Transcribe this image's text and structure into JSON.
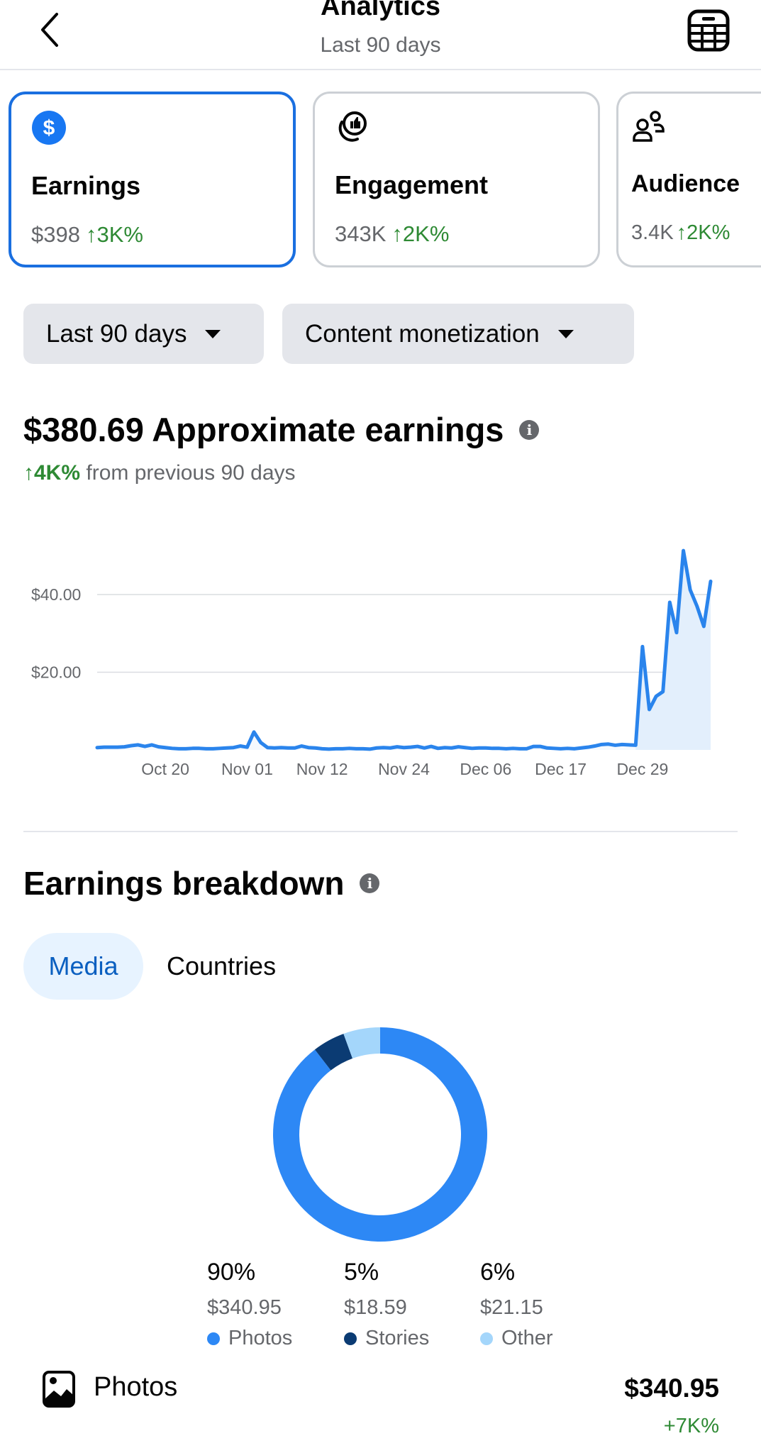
{
  "header": {
    "title": "Analytics",
    "subtitle": "Last 90 days",
    "back_icon": "chevron-left-icon",
    "right_icon": "calculator-icon"
  },
  "cards": [
    {
      "label": "Earnings",
      "value": "$398",
      "change": "↑3K%",
      "icon": "dollar-circle-icon",
      "selected": true
    },
    {
      "label": "Engagement",
      "value": "343K",
      "change": "↑2K%",
      "icon": "thumbs-up-engagement-icon",
      "selected": false
    },
    {
      "label": "Audience",
      "value": "3.4K",
      "change": "↑2K%",
      "icon": "people-icon",
      "selected": false
    }
  ],
  "filters": {
    "period": "Last 90 days",
    "type": "Content monetization"
  },
  "summary": {
    "amount_label": "$380.69 Approximate earnings",
    "change": "↑4K%",
    "change_text": "from previous 90 days"
  },
  "colors": {
    "accent": "#1877F2",
    "line": "#2a84ec",
    "fill": "#e3effc",
    "positive": "#2e8a34",
    "photos": "#2d88f5",
    "stories": "#0b3b73",
    "other": "#a4d6fb"
  },
  "chart_data": [
    {
      "type": "area",
      "ylim": [
        0,
        52
      ],
      "yticks": [
        {
          "value": 20,
          "label": "$20.00"
        },
        {
          "value": 40,
          "label": "$40.00"
        }
      ],
      "xticks": [
        "Oct 20",
        "Nov 01",
        "Nov 12",
        "Nov 24",
        "Dec 06",
        "Dec 17",
        "Dec 29"
      ],
      "grid": true,
      "x": [
        "Oct 10",
        "Oct 11",
        "Oct 12",
        "Oct 13",
        "Oct 14",
        "Oct 15",
        "Oct 16",
        "Oct 17",
        "Oct 18",
        "Oct 19",
        "Oct 20",
        "Oct 21",
        "Oct 22",
        "Oct 23",
        "Oct 24",
        "Oct 25",
        "Oct 26",
        "Oct 27",
        "Oct 28",
        "Oct 29",
        "Oct 30",
        "Oct 31",
        "Nov 01",
        "Nov 02",
        "Nov 03",
        "Nov 04",
        "Nov 05",
        "Nov 06",
        "Nov 07",
        "Nov 08",
        "Nov 09",
        "Nov 10",
        "Nov 11",
        "Nov 12",
        "Nov 13",
        "Nov 14",
        "Nov 15",
        "Nov 16",
        "Nov 17",
        "Nov 18",
        "Nov 19",
        "Nov 20",
        "Nov 21",
        "Nov 22",
        "Nov 23",
        "Nov 24",
        "Nov 25",
        "Nov 26",
        "Nov 27",
        "Nov 28",
        "Nov 29",
        "Nov 30",
        "Dec 01",
        "Dec 02",
        "Dec 03",
        "Dec 04",
        "Dec 05",
        "Dec 06",
        "Dec 07",
        "Dec 08",
        "Dec 09",
        "Dec 10",
        "Dec 11",
        "Dec 12",
        "Dec 13",
        "Dec 14",
        "Dec 15",
        "Dec 16",
        "Dec 17",
        "Dec 18",
        "Dec 19",
        "Dec 20",
        "Dec 21",
        "Dec 22",
        "Dec 23",
        "Dec 24",
        "Dec 25",
        "Dec 26",
        "Dec 27",
        "Dec 28",
        "Dec 29",
        "Dec 30",
        "Dec 31",
        "Jan 01",
        "Jan 02",
        "Jan 03",
        "Jan 04",
        "Jan 05",
        "Jan 06",
        "Jan 07",
        "Jan 08"
      ],
      "values": [
        0.6,
        0.7,
        0.7,
        0.7,
        0.8,
        1.1,
        1.3,
        0.9,
        1.3,
        0.8,
        0.6,
        0.4,
        0.3,
        0.3,
        0.4,
        0.4,
        0.3,
        0.3,
        0.4,
        0.5,
        0.6,
        1.0,
        0.7,
        4.6,
        1.9,
        0.6,
        0.5,
        0.6,
        0.5,
        0.5,
        1.0,
        0.6,
        0.5,
        0.3,
        0.2,
        0.3,
        0.3,
        0.4,
        0.3,
        0.3,
        0.2,
        0.5,
        0.6,
        0.5,
        0.8,
        0.6,
        0.7,
        0.9,
        0.5,
        0.9,
        0.4,
        0.6,
        0.5,
        0.8,
        0.6,
        0.4,
        0.5,
        0.5,
        0.4,
        0.4,
        0.3,
        0.4,
        0.3,
        0.3,
        0.9,
        0.9,
        0.5,
        0.4,
        0.3,
        0.4,
        0.3,
        0.5,
        0.7,
        1.0,
        1.4,
        1.5,
        1.2,
        1.4,
        1.3,
        1.2,
        26.6,
        10.4,
        13.8,
        15.0,
        38.0,
        30.2,
        51.3,
        41.2,
        37.0,
        31.8,
        43.4
      ]
    },
    {
      "type": "pie",
      "donut": true,
      "slices": [
        {
          "name": "Photos",
          "percent": "90%",
          "value": 340.95,
          "amount": "$340.95"
        },
        {
          "name": "Stories",
          "percent": "5%",
          "value": 18.59,
          "amount": "$18.59"
        },
        {
          "name": "Other",
          "percent": "6%",
          "value": 21.15,
          "amount": "$21.15"
        }
      ]
    }
  ],
  "breakdown": {
    "title": "Earnings breakdown",
    "tabs": [
      {
        "label": "Media",
        "active": true
      },
      {
        "label": "Countries",
        "active": false
      }
    ],
    "rows": [
      {
        "label": "Photos",
        "icon": "photo-icon",
        "amount": "$340.95",
        "change": "+7K%"
      }
    ]
  }
}
